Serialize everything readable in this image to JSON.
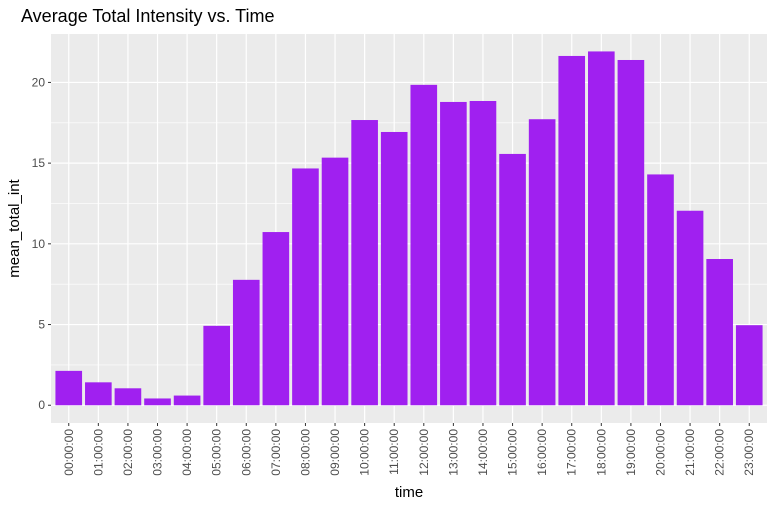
{
  "chart_data": {
    "type": "bar",
    "title": "Average Total Intensity vs. Time",
    "xlabel": "time",
    "ylabel": "mean_total_int",
    "categories": [
      "00:00:00",
      "01:00:00",
      "02:00:00",
      "03:00:00",
      "04:00:00",
      "05:00:00",
      "06:00:00",
      "07:00:00",
      "08:00:00",
      "09:00:00",
      "10:00:00",
      "11:00:00",
      "12:00:00",
      "13:00:00",
      "14:00:00",
      "15:00:00",
      "16:00:00",
      "17:00:00",
      "18:00:00",
      "19:00:00",
      "20:00:00",
      "21:00:00",
      "22:00:00",
      "23:00:00"
    ],
    "values": [
      2.13,
      1.42,
      1.05,
      0.42,
      0.6,
      4.92,
      7.77,
      10.73,
      14.67,
      15.34,
      17.67,
      16.93,
      19.85,
      18.79,
      18.85,
      15.57,
      17.72,
      21.64,
      21.92,
      21.39,
      14.3,
      12.05,
      9.06,
      4.96
    ],
    "ylim": [
      -1.1,
      23.0
    ],
    "yticks": [
      0,
      5,
      10,
      15,
      20
    ],
    "grid": true,
    "colors": {
      "bar": "#A020F0",
      "panel": "#EBEBEB",
      "grid_major": "#FFFFFF",
      "tick_text": "#4D4D4D",
      "tick_mark": "#333333"
    }
  }
}
